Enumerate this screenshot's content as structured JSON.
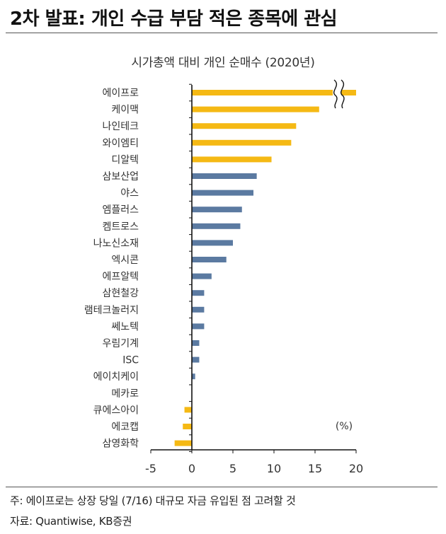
{
  "header": {
    "title": "2차 발표: 개인 수급 부담 적은 종목에 관심"
  },
  "chart_data": {
    "type": "bar",
    "orientation": "horizontal",
    "title": "시가총액 대비 개인 순매수 (2020년)",
    "unit_label": "(%)",
    "xlim": [
      -5,
      20
    ],
    "xticks": [
      "-5",
      "0",
      "5",
      "10",
      "15",
      "20"
    ],
    "axis_break_on": "에이프로",
    "categories": [
      "에이프로",
      "케이맥",
      "나인테크",
      "와이엠티",
      "디알텍",
      "삼보산업",
      "야스",
      "엠플러스",
      "켐트로스",
      "나노신소재",
      "엑시콘",
      "에프알텍",
      "삼현철강",
      "램테크놀러지",
      "쎄노텍",
      "우림기계",
      "ISC",
      "에이치케이",
      "메카로",
      "큐에스아이",
      "에코캡",
      "삼영화학"
    ],
    "values": [
      20.0,
      15.5,
      12.7,
      12.1,
      9.7,
      7.9,
      7.5,
      6.1,
      5.9,
      5.0,
      4.2,
      2.4,
      1.5,
      1.5,
      1.5,
      0.9,
      0.9,
      0.4,
      0.0,
      -0.9,
      -1.1,
      -2.1
    ],
    "colors": [
      "#f5b914",
      "#f5b914",
      "#f5b914",
      "#f5b914",
      "#f5b914",
      "#5b7aa1",
      "#5b7aa1",
      "#5b7aa1",
      "#5b7aa1",
      "#5b7aa1",
      "#5b7aa1",
      "#5b7aa1",
      "#5b7aa1",
      "#5b7aa1",
      "#5b7aa1",
      "#5b7aa1",
      "#5b7aa1",
      "#5b7aa1",
      "#5b7aa1",
      "#f5b914",
      "#f5b914",
      "#f5b914"
    ]
  },
  "notes": {
    "note1": "주: 에이프로는 상장 당일 (7/16) 대규모 자금 유입된 점 고려할 것",
    "source": "자료: Quantiwise, KB증권"
  }
}
